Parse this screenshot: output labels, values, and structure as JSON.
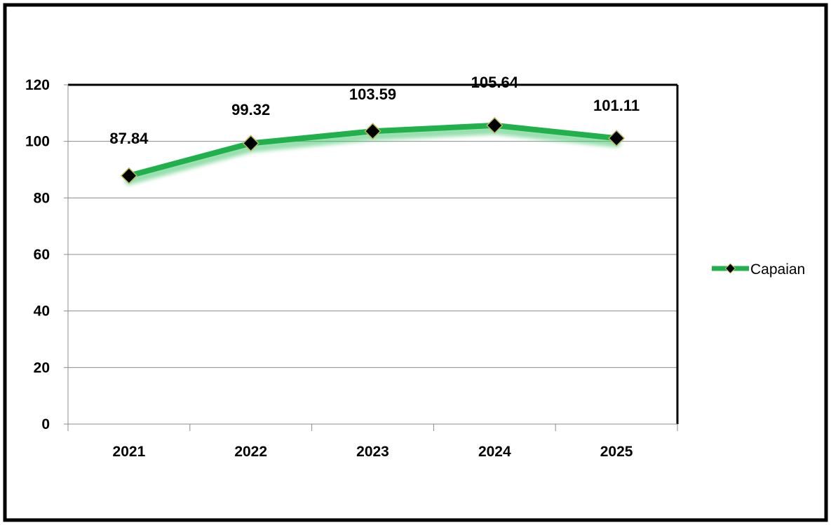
{
  "chart_data": {
    "type": "line",
    "title": "",
    "xlabel": "",
    "ylabel": "",
    "categories": [
      "2021",
      "2022",
      "2023",
      "2024",
      "2025"
    ],
    "series": [
      {
        "name": "Capaian",
        "values": [
          87.84,
          99.32,
          103.59,
          105.64,
          101.11
        ],
        "data_labels": [
          "87.84",
          "99.32",
          "103.59",
          "105.64",
          "101.11"
        ],
        "line_color": "#21b04b",
        "marker_color": "#000000",
        "marker": "diamond"
      }
    ],
    "ylim": [
      0,
      120
    ],
    "yticks": [
      0,
      20,
      40,
      60,
      80,
      100,
      120
    ],
    "grid": true,
    "legend_position": "right"
  }
}
